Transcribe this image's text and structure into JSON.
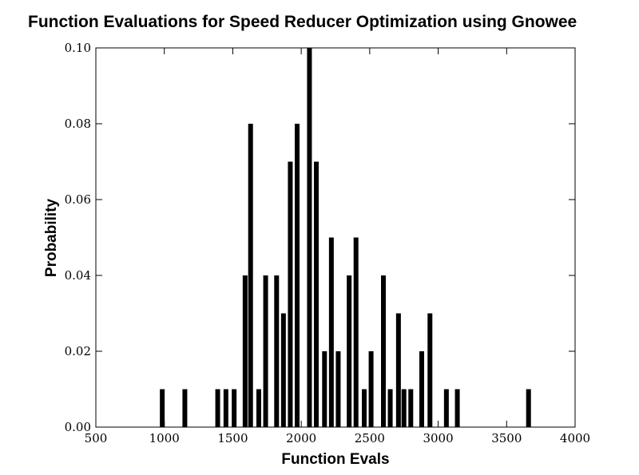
{
  "chart_data": {
    "type": "bar",
    "title": "Function Evaluations for Speed Reducer Optimization using Gnowee",
    "xlabel": "Function Evals",
    "ylabel": "Probability",
    "xlim": [
      500,
      4000
    ],
    "ylim": [
      0,
      0.1
    ],
    "xticks": [
      "500",
      "1000",
      "1500",
      "2000",
      "2500",
      "3000",
      "3500",
      "4000"
    ],
    "yticks": [
      "0.00",
      "0.02",
      "0.04",
      "0.06",
      "0.08",
      "0.10"
    ],
    "grid": false,
    "bar_color": "#000000",
    "x": [
      985,
      1150,
      1390,
      1450,
      1510,
      1590,
      1630,
      1690,
      1740,
      1820,
      1870,
      1920,
      1970,
      2060,
      2110,
      2170,
      2220,
      2270,
      2350,
      2400,
      2460,
      2510,
      2600,
      2650,
      2710,
      2750,
      2800,
      2880,
      2940,
      3060,
      3140,
      3660
    ],
    "values": [
      0.01,
      0.01,
      0.01,
      0.01,
      0.01,
      0.04,
      0.08,
      0.01,
      0.04,
      0.04,
      0.03,
      0.07,
      0.08,
      0.1,
      0.07,
      0.02,
      0.05,
      0.02,
      0.04,
      0.05,
      0.01,
      0.02,
      0.04,
      0.01,
      0.03,
      0.01,
      0.01,
      0.02,
      0.03,
      0.01,
      0.01,
      0.01
    ]
  }
}
